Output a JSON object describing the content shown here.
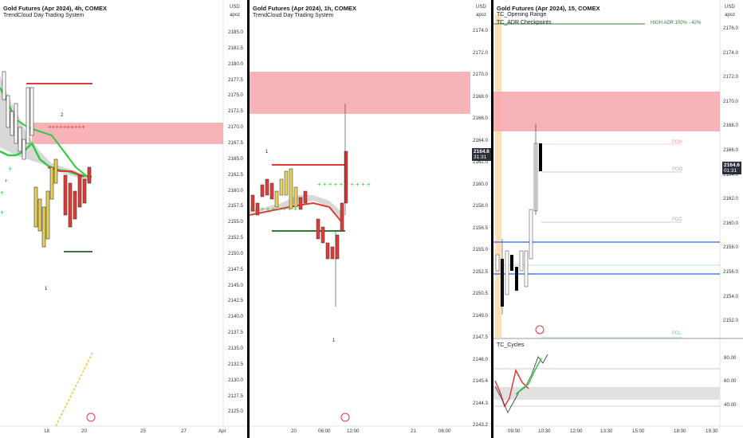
{
  "panes": [
    {
      "title": "Gold Futures (Apr 2024), 4h, COMEX",
      "subtitle": "TrendCloud Day Trading System",
      "currency": "USD",
      "apoz": "apoz",
      "yticks": [
        "2185.0",
        "2182.5",
        "2180.0",
        "2177.5",
        "2175.0",
        "2172.5",
        "2170.0",
        "2167.5",
        "2165.0",
        "2162.5",
        "2160.0",
        "2157.5",
        "2155.0",
        "2152.5",
        "2150.0",
        "2147.5",
        "2145.0",
        "2142.5",
        "2140.0",
        "2137.5",
        "2135.0",
        "2132.5",
        "2130.0",
        "2127.5",
        "2125.0"
      ],
      "xticks": [
        "18",
        "20",
        "25",
        "27",
        "Apr"
      ],
      "annotations": [
        "2",
        "1"
      ]
    },
    {
      "title": "Gold Futures (Apr 2024), 1h, COMEX",
      "subtitle": "TrendCloud Day Trading System",
      "currency": "USD",
      "apoz": "apoz",
      "yticks": [
        "2174.0",
        "2172.0",
        "2170.0",
        "2168.0",
        "2166.0",
        "2164.0",
        "2162.0",
        "2160.0",
        "2158.0",
        "2156.5",
        "2155.0",
        "2152.5",
        "2150.5",
        "2149.0",
        "2147.5",
        "2146.0",
        "2145.4",
        "2144.3",
        "2143.2"
      ],
      "price_tag": "2164.6",
      "price_time": "31:31",
      "xticks": [
        "20",
        "06:00",
        "12:00",
        "21",
        "06:00"
      ],
      "annotations": [
        "1",
        "1"
      ]
    },
    {
      "title": "Gold Futures (Apr 2024), 15, COMEX",
      "line1": "TC_Opening Range",
      "line2": "TC_ADR Checkpoints",
      "currency": "USD",
      "apoz": "apoz",
      "adr_label": "HIGH ADR 100% - 42%",
      "levels": [
        "PDH",
        "POO",
        "PDC",
        "PDL"
      ],
      "yticks": [
        "2176.0",
        "2174.0",
        "2172.0",
        "2170.0",
        "2168.0",
        "2166.0",
        "2164.0",
        "2162.0",
        "2160.0",
        "2158.0",
        "2156.0",
        "2154.0",
        "2152.0"
      ],
      "price_tag": "2164.6",
      "price_time": "01:31",
      "cycles_label": "TC_Cycles",
      "cycle_ticks": [
        "80.00",
        "60.00",
        "40.00"
      ],
      "xticks": [
        "09:00",
        "10:30",
        "12:00",
        "13:30",
        "15:00",
        "18:00",
        "19:30"
      ]
    }
  ]
}
